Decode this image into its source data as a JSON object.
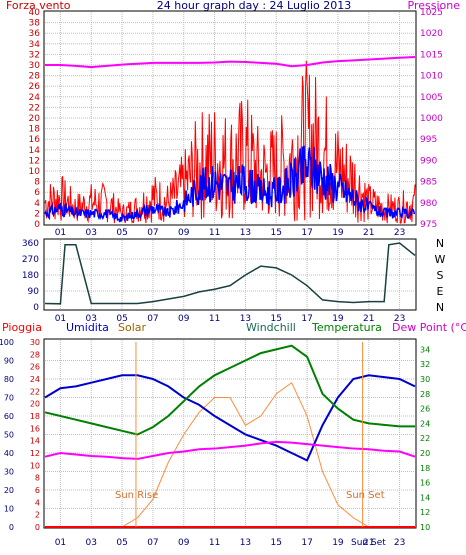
{
  "header": {
    "title": "24 hour graph day : 24 Luglio 2013",
    "left_label": "Forza vento",
    "right_label": "Pressione"
  },
  "colors": {
    "wind": "#ff0000",
    "wind_avg": "#0000ff",
    "pressure": "#ff00ff",
    "direction": "#1a4040",
    "humidity": "#0000cc",
    "solar": "#ff8c3c",
    "windchill": "#1a6b50",
    "temperature": "#008000",
    "dewpoint": "#ff00ff",
    "rain": "#ff0000",
    "grid": "#c0c0c0"
  },
  "x_ticks": [
    "01",
    "03",
    "05",
    "07",
    "09",
    "11",
    "13",
    "15",
    "17",
    "19",
    "21",
    "23"
  ],
  "chart_data": [
    {
      "type": "line",
      "xlabel": "",
      "y_left_label": "Forza vento",
      "y_right_label": "Pressione",
      "ylim_left": [
        0,
        40
      ],
      "ylim_right": [
        975,
        1025
      ],
      "y_left_ticks": [
        "40",
        "38",
        "36",
        "34",
        "32",
        "30",
        "28",
        "26",
        "24",
        "22",
        "20",
        "18",
        "16",
        "14",
        "12",
        "10",
        "8",
        "6",
        "4",
        "2",
        "0"
      ],
      "y_right_ticks": [
        "1025",
        "1020",
        "1015",
        "1010",
        "1005",
        "1000",
        "995",
        "990",
        "985",
        "980",
        "975"
      ],
      "x": [
        0,
        1,
        2,
        3,
        4,
        5,
        6,
        7,
        8,
        9,
        10,
        11,
        12,
        13,
        14,
        15,
        16,
        17,
        18,
        19,
        20,
        21,
        22,
        23,
        24
      ],
      "series": [
        {
          "name": "Forza vento",
          "axis": "left",
          "color_key": "wind",
          "values": [
            4,
            5,
            3,
            4,
            4,
            2,
            3,
            5,
            4,
            7,
            11,
            12,
            11,
            13,
            9,
            10,
            12,
            16,
            14,
            10,
            8,
            4,
            3,
            3,
            4
          ]
        },
        {
          "name": "",
          "axis": "left",
          "color_key": "wind_avg",
          "values": [
            2,
            3,
            2,
            2,
            2,
            1,
            2,
            3,
            2,
            4,
            7,
            8,
            7,
            8,
            6,
            6,
            8,
            11,
            9,
            7,
            5,
            3,
            2,
            2,
            2
          ]
        },
        {
          "name": "Pressione",
          "axis": "right",
          "color_key": "pressure",
          "values": [
            1012.5,
            1012.5,
            1012.3,
            1012,
            1012.3,
            1012.6,
            1012.8,
            1013,
            1013,
            1013,
            1013,
            1013.1,
            1013.3,
            1013.2,
            1013,
            1012.8,
            1012.2,
            1012.5,
            1013.1,
            1013.4,
            1013.6,
            1013.8,
            1014,
            1014.2,
            1014.4
          ]
        }
      ]
    },
    {
      "type": "line",
      "xlabel": "",
      "ylim": [
        0,
        360
      ],
      "y_ticks": [
        "360",
        "270",
        "180",
        "90",
        "0"
      ],
      "right_labels": [
        "N",
        "W",
        "S",
        "E",
        "N"
      ],
      "x": [
        0,
        1,
        1.3,
        2,
        3,
        4,
        5,
        6,
        7,
        8,
        9,
        10,
        11,
        12,
        13,
        14,
        15,
        15.5,
        16,
        17,
        18,
        19,
        20,
        21,
        22,
        22.3,
        23,
        24
      ],
      "series": [
        {
          "name": "",
          "color_key": "direction",
          "values": [
            20,
            18,
            350,
            350,
            20,
            20,
            20,
            20,
            30,
            45,
            60,
            85,
            100,
            120,
            180,
            230,
            220,
            200,
            180,
            120,
            40,
            30,
            25,
            30,
            30,
            350,
            360,
            290
          ]
        }
      ]
    },
    {
      "type": "line",
      "xlabel": "",
      "legend": [
        "Pioggia",
        "Umidita",
        "Solar",
        "Windchill",
        "Temperatura",
        "Dew Point (°C)"
      ],
      "rain_axis_ticks": [
        "100",
        "90",
        "80",
        "70",
        "60",
        "50",
        "40",
        "30",
        "20",
        "10",
        "0"
      ],
      "humidity_axis_ticks": [
        "30",
        "28",
        "26",
        "24",
        "22",
        "20",
        "18",
        "16",
        "14",
        "12",
        "10",
        "8",
        "6",
        "4",
        "2",
        "0"
      ],
      "temp_axis_ticks": [
        "34",
        "32",
        "30",
        "28",
        "26",
        "24",
        "22",
        "20",
        "18",
        "16",
        "14",
        "12",
        "10"
      ],
      "ylim_humidity": [
        0,
        100
      ],
      "ylim_temperature": [
        10,
        35
      ],
      "annotations": [
        {
          "text": "Sun Rise"
        },
        {
          "text": "Sun Set"
        }
      ],
      "x_extra_label": "Sun Set",
      "x": [
        0,
        1,
        2,
        3,
        4,
        5,
        6,
        7,
        8,
        9,
        10,
        11,
        12,
        13,
        14,
        15,
        16,
        17,
        18,
        19,
        20,
        21,
        22,
        23,
        24
      ],
      "series": [
        {
          "name": "Umidita",
          "color_key": "humidity",
          "values": [
            70,
            75,
            76,
            78,
            80,
            82,
            82,
            80,
            76,
            70,
            66,
            60,
            55,
            50,
            47,
            44,
            40,
            36,
            55,
            70,
            80,
            82,
            81,
            80,
            76
          ]
        },
        {
          "name": "Temperatura",
          "color_key": "temperature",
          "values": [
            25.5,
            25,
            24.5,
            24,
            23.5,
            23,
            22.5,
            23.5,
            25,
            27,
            29,
            30.5,
            31.5,
            32.5,
            33.5,
            34,
            34.5,
            33,
            28,
            26,
            24.5,
            24,
            23.8,
            23.6,
            23.6
          ]
        },
        {
          "name": "Dew Point (°C)",
          "color_key": "dewpoint",
          "values": [
            19.5,
            20,
            19.8,
            19.6,
            19.5,
            19.3,
            19.2,
            19.6,
            20,
            20.2,
            20.5,
            20.6,
            20.8,
            21,
            21.3,
            21.5,
            21.4,
            21.2,
            21,
            20.8,
            20.6,
            20.5,
            20.3,
            20.2,
            19.5
          ]
        },
        {
          "name": "Solar",
          "color_key": "solar",
          "values": [
            0,
            0,
            0,
            0,
            0,
            0,
            5,
            15,
            35,
            50,
            62,
            70,
            70,
            55,
            60,
            72,
            78,
            60,
            30,
            12,
            5,
            0,
            0,
            0,
            0
          ]
        },
        {
          "name": "Pioggia",
          "color_key": "rain",
          "values": [
            0,
            0,
            0,
            0,
            0,
            0,
            0,
            0,
            0,
            0,
            0,
            0,
            0,
            0,
            0,
            0,
            0,
            0,
            0,
            0,
            0,
            0,
            0,
            0,
            0
          ]
        }
      ]
    }
  ]
}
